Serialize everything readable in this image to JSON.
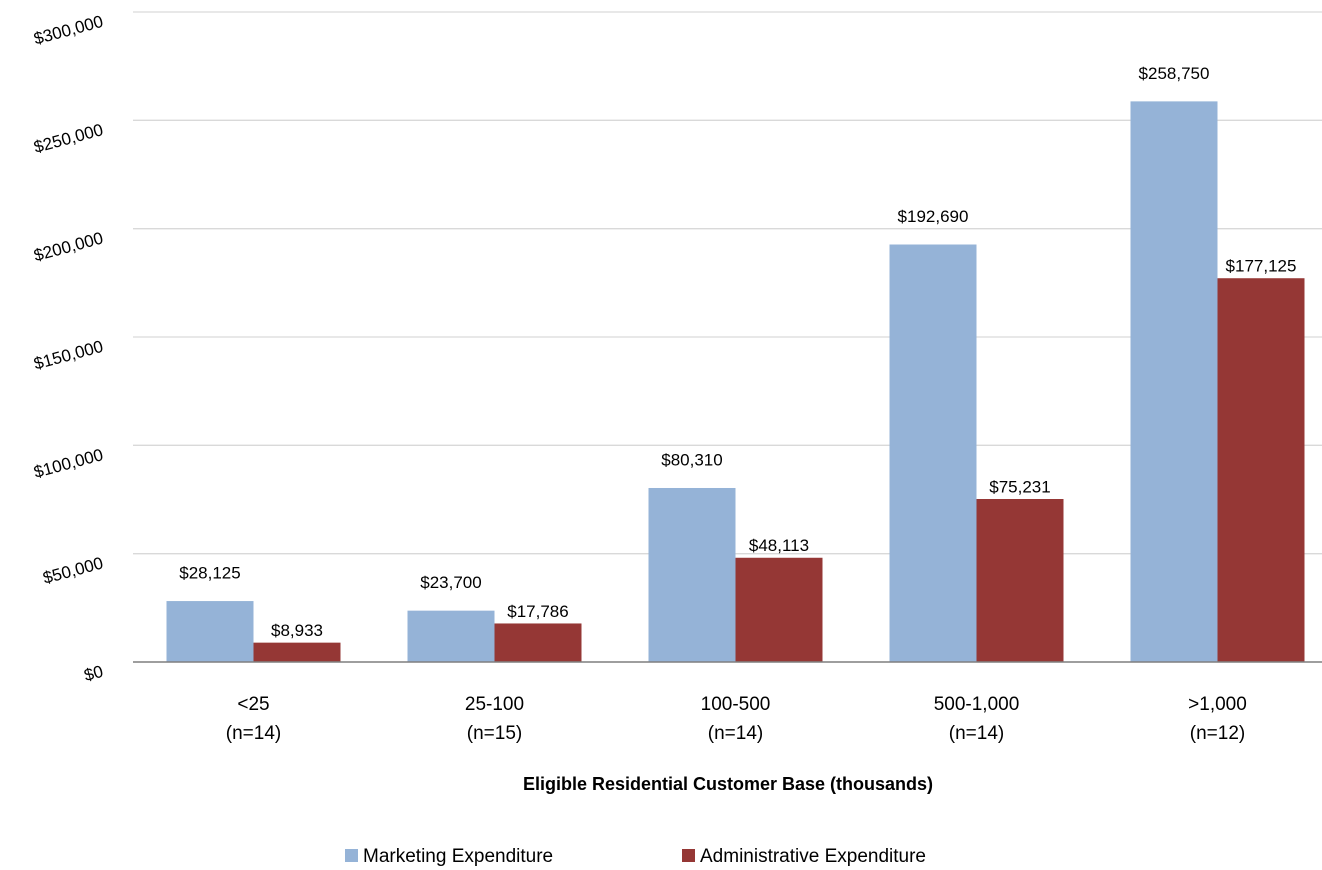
{
  "chart_data": {
    "type": "bar",
    "x_label": "Eligible Residential Customer Base (thousands)",
    "categories": [
      [
        "<25",
        "(n=14)"
      ],
      [
        "25-100",
        "(n=15)"
      ],
      [
        "100-500",
        "(n=14)"
      ],
      [
        "500-1,000",
        "(n=14)"
      ],
      [
        ">1,000",
        "(n=12)"
      ]
    ],
    "series": [
      {
        "name": "Marketing Expenditure",
        "color": "#95b3d7",
        "values": [
          28125,
          23700,
          80310,
          192690,
          258750
        ],
        "value_labels": [
          "$28,125",
          "$23,700",
          "$80,310",
          "$192,690",
          "$258,750"
        ]
      },
      {
        "name": "Administrative Expenditure",
        "color": "#953735",
        "values": [
          8933,
          17786,
          48113,
          75231,
          177125
        ],
        "value_labels": [
          "$8,933",
          "$17,786",
          "$48,113",
          "$75,231",
          "$177,125"
        ]
      }
    ],
    "ylim": [
      0,
      300000
    ],
    "yticks": [
      {
        "value": 0,
        "label": "$0"
      },
      {
        "value": 50000,
        "label": "$50,000"
      },
      {
        "value": 100000,
        "label": "$100,000"
      },
      {
        "value": 150000,
        "label": "$150,000"
      },
      {
        "value": 200000,
        "label": "$200,000"
      },
      {
        "value": 250000,
        "label": "$250,000"
      },
      {
        "value": 300000,
        "label": "$300,000"
      }
    ],
    "grid": true,
    "legend": "bottom"
  }
}
